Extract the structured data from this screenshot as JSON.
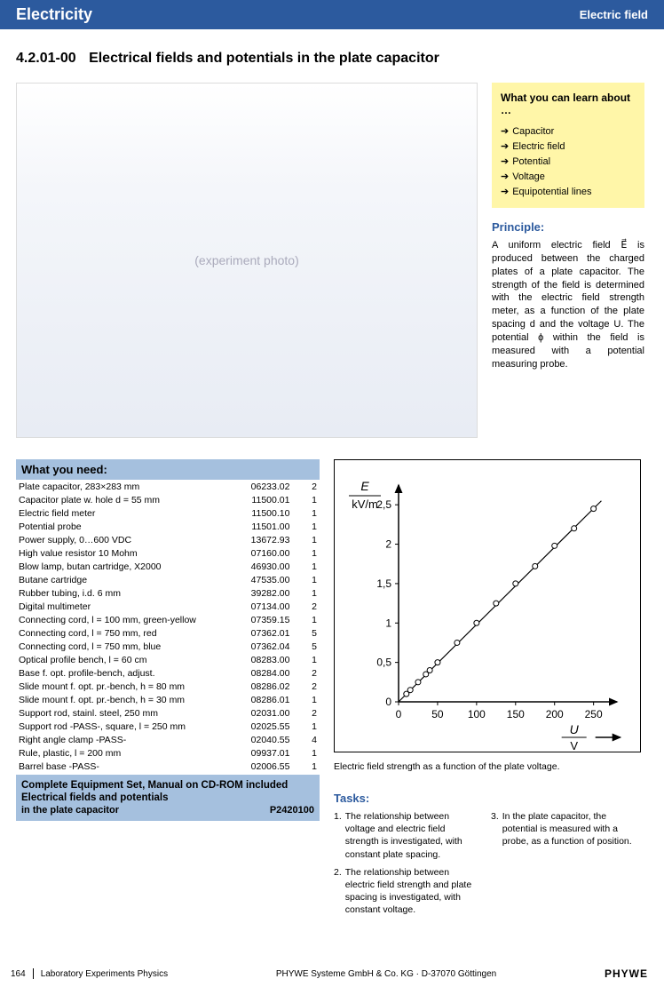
{
  "header": {
    "chapter": "Electricity",
    "section": "Electric field"
  },
  "experiment": {
    "code": "4.2.01-00",
    "title": "Electrical fields and potentials in the plate capacitor"
  },
  "learn": {
    "heading": "What you can learn about …",
    "items": [
      "Capacitor",
      "Electric field",
      "Potential",
      "Voltage",
      "Equipotential lines"
    ]
  },
  "principle": {
    "heading": "Principle:",
    "body": "A uniform electric field E⃗ is produced between the charged plates of a plate capacitor. The strength of the field is determined with the electric field strength meter, as a function of the plate spacing d and the voltage U. The potential ϕ within the field is measured with a potential measuring probe."
  },
  "need": {
    "heading": "What you need:",
    "complete_l1": "Complete Equipment Set, Manual on CD-ROM included",
    "complete_l2": "Electrical fields and potentials",
    "complete_l3": "in the plate capacitor",
    "complete_code": "P2420100",
    "items": [
      {
        "name": "Plate capacitor, 283×283 mm",
        "num": "06233.02",
        "qty": "2"
      },
      {
        "name": "Capacitor plate w. hole d = 55 mm",
        "num": "11500.01",
        "qty": "1"
      },
      {
        "name": "Electric field meter",
        "num": "11500.10",
        "qty": "1"
      },
      {
        "name": "Potential probe",
        "num": "11501.00",
        "qty": "1"
      },
      {
        "name": "Power supply, 0…600 VDC",
        "num": "13672.93",
        "qty": "1"
      },
      {
        "name": "High value resistor 10 Mohm",
        "num": "07160.00",
        "qty": "1"
      },
      {
        "name": "Blow lamp, butan cartridge, X2000",
        "num": "46930.00",
        "qty": "1"
      },
      {
        "name": "Butane cartridge",
        "num": "47535.00",
        "qty": "1"
      },
      {
        "name": "Rubber tubing, i.d. 6 mm",
        "num": "39282.00",
        "qty": "1"
      },
      {
        "name": "Digital multimeter",
        "num": "07134.00",
        "qty": "2"
      },
      {
        "name": "Connecting cord, l = 100 mm, green-yellow",
        "num": "07359.15",
        "qty": "1"
      },
      {
        "name": "Connecting cord, l = 750 mm, red",
        "num": "07362.01",
        "qty": "5"
      },
      {
        "name": "Connecting cord, l = 750 mm, blue",
        "num": "07362.04",
        "qty": "5"
      },
      {
        "name": "Optical profile bench, l = 60 cm",
        "num": "08283.00",
        "qty": "1"
      },
      {
        "name": "Base f. opt. profile-bench, adjust.",
        "num": "08284.00",
        "qty": "2"
      },
      {
        "name": "Slide mount f. opt. pr.-bench, h = 80 mm",
        "num": "08286.02",
        "qty": "2"
      },
      {
        "name": "Slide mount f. opt. pr.-bench, h = 30 mm",
        "num": "08286.01",
        "qty": "1"
      },
      {
        "name": "Support rod, stainl. steel, 250 mm",
        "num": "02031.00",
        "qty": "2"
      },
      {
        "name": "Support rod -PASS-, square, l = 250 mm",
        "num": "02025.55",
        "qty": "1"
      },
      {
        "name": "Right angle clamp -PASS-",
        "num": "02040.55",
        "qty": "4"
      },
      {
        "name": "Rule, plastic, l = 200 mm",
        "num": "09937.01",
        "qty": "1"
      },
      {
        "name": "Barrel base -PASS-",
        "num": "02006.55",
        "qty": "1"
      }
    ]
  },
  "chart": {
    "caption": "Electric field strength as a function of the plate voltage.",
    "ylabel_top": "E",
    "ylabel_bottom": "kV/m",
    "xlabel_top": "U",
    "xlabel_bottom": "V",
    "ylim": [
      0,
      2.75
    ],
    "xlim": [
      0,
      280
    ],
    "yticks": [
      0,
      0.5,
      1,
      1.5,
      2,
      2.5
    ],
    "ytick_labels": [
      "0",
      "0,5",
      "1",
      "1,5",
      "2",
      "2,5"
    ],
    "xticks": [
      0,
      50,
      100,
      150,
      200,
      250
    ],
    "xtick_labels": [
      "0",
      "50",
      "100",
      "150",
      "200",
      "250"
    ],
    "points": [
      [
        10,
        0.1
      ],
      [
        15,
        0.15
      ],
      [
        25,
        0.25
      ],
      [
        35,
        0.35
      ],
      [
        40,
        0.4
      ],
      [
        50,
        0.5
      ],
      [
        75,
        0.75
      ],
      [
        100,
        1.0
      ],
      [
        125,
        1.25
      ],
      [
        150,
        1.5
      ],
      [
        175,
        1.72
      ],
      [
        200,
        1.98
      ],
      [
        225,
        2.2
      ],
      [
        250,
        2.45
      ]
    ],
    "line_start": [
      0,
      0
    ],
    "line_end": [
      260,
      2.55
    ],
    "marker_radius": 3,
    "axis_color": "#000000",
    "point_fill": "#ffffff",
    "line_width": 1.2,
    "tick_fontsize": 12,
    "label_fontsize": 14
  },
  "tasks": {
    "heading": "Tasks:",
    "items": [
      "The relationship between voltage and electric field strength is investigated, with constant plate spacing.",
      "The relationship between electric field strength and plate spacing is investigated, with constant voltage.",
      "In the plate capacitor, the potential is measured with a probe, as a function of position."
    ]
  },
  "footer": {
    "page": "164",
    "book": "Laboratory Experiments Physics",
    "company": "PHYWE Systeme GmbH & Co. KG · D-37070 Göttingen",
    "brand": "PHYWE"
  }
}
